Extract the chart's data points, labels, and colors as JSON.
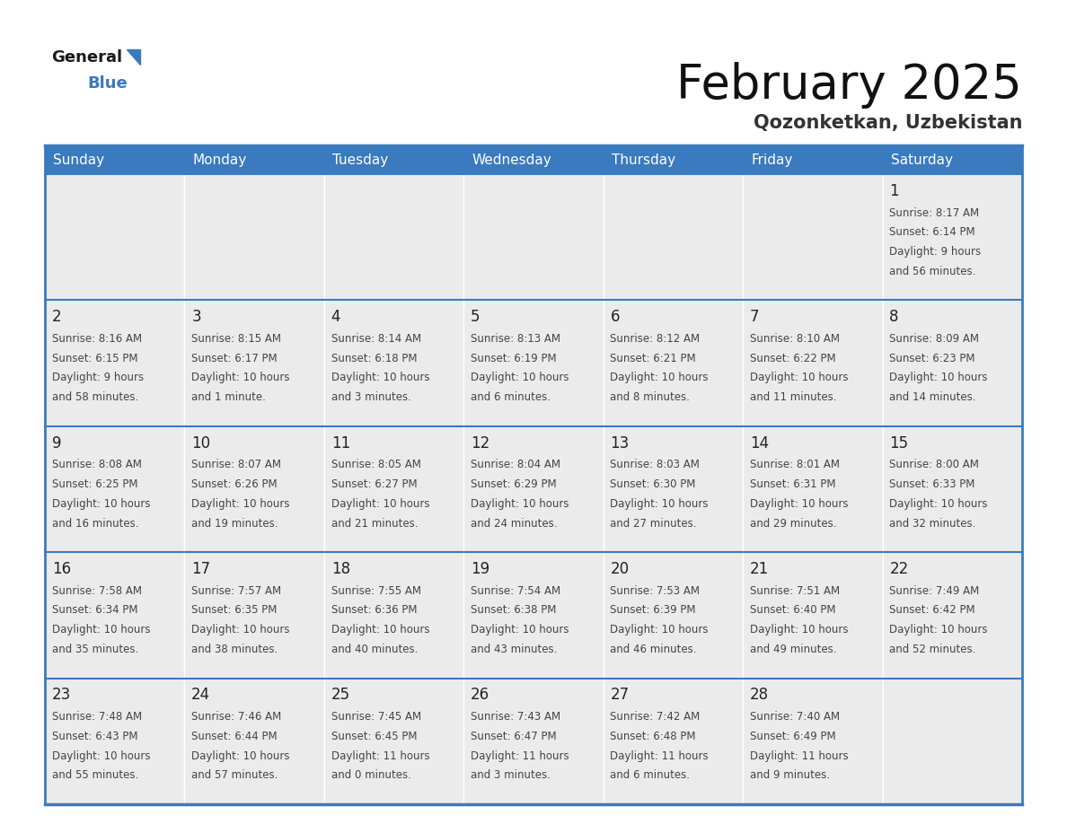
{
  "title": "February 2025",
  "subtitle": "Qozonketkan, Uzbekistan",
  "days_of_week": [
    "Sunday",
    "Monday",
    "Tuesday",
    "Wednesday",
    "Thursday",
    "Friday",
    "Saturday"
  ],
  "header_bg": "#3a7abf",
  "header_text": "#ffffff",
  "cell_bg": "#ebebeb",
  "day_number_color": "#222222",
  "info_text_color": "#444444",
  "border_color": "#3a7abf",
  "cell_border_color": "#ffffff",
  "title_color": "#111111",
  "subtitle_color": "#333333",
  "calendar_data": [
    [
      null,
      null,
      null,
      null,
      null,
      null,
      {
        "day": "1",
        "sunrise": "8:17 AM",
        "sunset": "6:14 PM",
        "daylight_line1": "Daylight: 9 hours",
        "daylight_line2": "and 56 minutes."
      }
    ],
    [
      {
        "day": "2",
        "sunrise": "8:16 AM",
        "sunset": "6:15 PM",
        "daylight_line1": "Daylight: 9 hours",
        "daylight_line2": "and 58 minutes."
      },
      {
        "day": "3",
        "sunrise": "8:15 AM",
        "sunset": "6:17 PM",
        "daylight_line1": "Daylight: 10 hours",
        "daylight_line2": "and 1 minute."
      },
      {
        "day": "4",
        "sunrise": "8:14 AM",
        "sunset": "6:18 PM",
        "daylight_line1": "Daylight: 10 hours",
        "daylight_line2": "and 3 minutes."
      },
      {
        "day": "5",
        "sunrise": "8:13 AM",
        "sunset": "6:19 PM",
        "daylight_line1": "Daylight: 10 hours",
        "daylight_line2": "and 6 minutes."
      },
      {
        "day": "6",
        "sunrise": "8:12 AM",
        "sunset": "6:21 PM",
        "daylight_line1": "Daylight: 10 hours",
        "daylight_line2": "and 8 minutes."
      },
      {
        "day": "7",
        "sunrise": "8:10 AM",
        "sunset": "6:22 PM",
        "daylight_line1": "Daylight: 10 hours",
        "daylight_line2": "and 11 minutes."
      },
      {
        "day": "8",
        "sunrise": "8:09 AM",
        "sunset": "6:23 PM",
        "daylight_line1": "Daylight: 10 hours",
        "daylight_line2": "and 14 minutes."
      }
    ],
    [
      {
        "day": "9",
        "sunrise": "8:08 AM",
        "sunset": "6:25 PM",
        "daylight_line1": "Daylight: 10 hours",
        "daylight_line2": "and 16 minutes."
      },
      {
        "day": "10",
        "sunrise": "8:07 AM",
        "sunset": "6:26 PM",
        "daylight_line1": "Daylight: 10 hours",
        "daylight_line2": "and 19 minutes."
      },
      {
        "day": "11",
        "sunrise": "8:05 AM",
        "sunset": "6:27 PM",
        "daylight_line1": "Daylight: 10 hours",
        "daylight_line2": "and 21 minutes."
      },
      {
        "day": "12",
        "sunrise": "8:04 AM",
        "sunset": "6:29 PM",
        "daylight_line1": "Daylight: 10 hours",
        "daylight_line2": "and 24 minutes."
      },
      {
        "day": "13",
        "sunrise": "8:03 AM",
        "sunset": "6:30 PM",
        "daylight_line1": "Daylight: 10 hours",
        "daylight_line2": "and 27 minutes."
      },
      {
        "day": "14",
        "sunrise": "8:01 AM",
        "sunset": "6:31 PM",
        "daylight_line1": "Daylight: 10 hours",
        "daylight_line2": "and 29 minutes."
      },
      {
        "day": "15",
        "sunrise": "8:00 AM",
        "sunset": "6:33 PM",
        "daylight_line1": "Daylight: 10 hours",
        "daylight_line2": "and 32 minutes."
      }
    ],
    [
      {
        "day": "16",
        "sunrise": "7:58 AM",
        "sunset": "6:34 PM",
        "daylight_line1": "Daylight: 10 hours",
        "daylight_line2": "and 35 minutes."
      },
      {
        "day": "17",
        "sunrise": "7:57 AM",
        "sunset": "6:35 PM",
        "daylight_line1": "Daylight: 10 hours",
        "daylight_line2": "and 38 minutes."
      },
      {
        "day": "18",
        "sunrise": "7:55 AM",
        "sunset": "6:36 PM",
        "daylight_line1": "Daylight: 10 hours",
        "daylight_line2": "and 40 minutes."
      },
      {
        "day": "19",
        "sunrise": "7:54 AM",
        "sunset": "6:38 PM",
        "daylight_line1": "Daylight: 10 hours",
        "daylight_line2": "and 43 minutes."
      },
      {
        "day": "20",
        "sunrise": "7:53 AM",
        "sunset": "6:39 PM",
        "daylight_line1": "Daylight: 10 hours",
        "daylight_line2": "and 46 minutes."
      },
      {
        "day": "21",
        "sunrise": "7:51 AM",
        "sunset": "6:40 PM",
        "daylight_line1": "Daylight: 10 hours",
        "daylight_line2": "and 49 minutes."
      },
      {
        "day": "22",
        "sunrise": "7:49 AM",
        "sunset": "6:42 PM",
        "daylight_line1": "Daylight: 10 hours",
        "daylight_line2": "and 52 minutes."
      }
    ],
    [
      {
        "day": "23",
        "sunrise": "7:48 AM",
        "sunset": "6:43 PM",
        "daylight_line1": "Daylight: 10 hours",
        "daylight_line2": "and 55 minutes."
      },
      {
        "day": "24",
        "sunrise": "7:46 AM",
        "sunset": "6:44 PM",
        "daylight_line1": "Daylight: 10 hours",
        "daylight_line2": "and 57 minutes."
      },
      {
        "day": "25",
        "sunrise": "7:45 AM",
        "sunset": "6:45 PM",
        "daylight_line1": "Daylight: 11 hours",
        "daylight_line2": "and 0 minutes."
      },
      {
        "day": "26",
        "sunrise": "7:43 AM",
        "sunset": "6:47 PM",
        "daylight_line1": "Daylight: 11 hours",
        "daylight_line2": "and 3 minutes."
      },
      {
        "day": "27",
        "sunrise": "7:42 AM",
        "sunset": "6:48 PM",
        "daylight_line1": "Daylight: 11 hours",
        "daylight_line2": "and 6 minutes."
      },
      {
        "day": "28",
        "sunrise": "7:40 AM",
        "sunset": "6:49 PM",
        "daylight_line1": "Daylight: 11 hours",
        "daylight_line2": "and 9 minutes."
      },
      null
    ]
  ]
}
